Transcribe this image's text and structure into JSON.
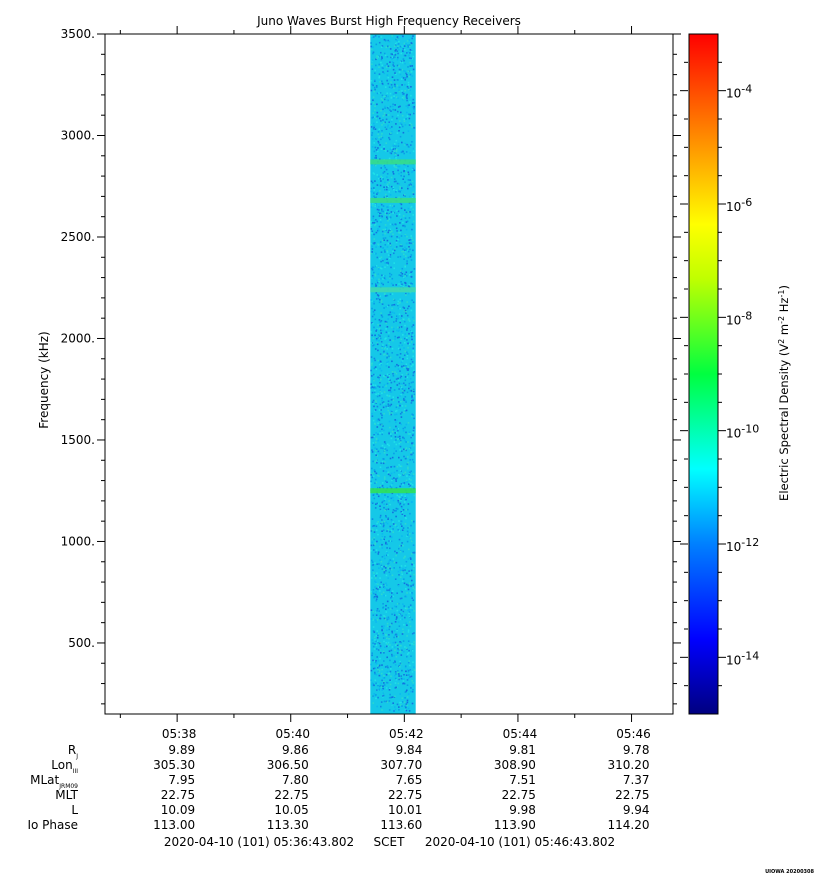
{
  "chart_data": {
    "type": "heatmap",
    "title": "Juno Waves Burst High Frequency Receivers",
    "ylabel": "Frequency (kHz)",
    "ylim": [
      150,
      3500
    ],
    "y_ticks": [
      "500.",
      "1000.",
      "1500.",
      "2000.",
      "2500.",
      "3000.",
      "3500."
    ],
    "y_tick_values": [
      500,
      1000,
      1500,
      2000,
      2500,
      3000,
      3500
    ],
    "x_time_range_min": [
      36.73,
      46.73
    ],
    "x_ticks": [
      "05:38",
      "05:40",
      "05:42",
      "05:44",
      "05:46"
    ],
    "x_tick_minutes": [
      38,
      40,
      42,
      44,
      46
    ],
    "data_time_span_min": [
      41.4,
      42.2
    ],
    "background_level_exp": -12,
    "emission_bands": [
      {
        "freq_khz": 2870,
        "level_exp": -11
      },
      {
        "freq_khz": 2680,
        "level_exp": -11
      },
      {
        "freq_khz": 2240,
        "level_exp": -11.5
      },
      {
        "freq_khz": 1250,
        "level_exp": -10.8
      }
    ],
    "colorbar": {
      "label_main": "Electric Spectral Density (V",
      "label_mid": " m",
      "label_mid2": " Hz",
      "label_end": ")",
      "sup1": "2",
      "sup2": "-2",
      "sup3": "-1",
      "range_exp": [
        -15,
        -3
      ],
      "ticks": [
        {
          "base": "10",
          "exp": "-4"
        },
        {
          "base": "10",
          "exp": "-6"
        },
        {
          "base": "10",
          "exp": "-8"
        },
        {
          "base": "10",
          "exp": "-10"
        },
        {
          "base": "10",
          "exp": "-12"
        },
        {
          "base": "10",
          "exp": "-14"
        }
      ],
      "tick_exps": [
        -4,
        -6,
        -8,
        -10,
        -12,
        -14
      ]
    },
    "ephemeris": [
      {
        "label": "R",
        "sub": "J",
        "values": [
          "9.89",
          "9.86",
          "9.84",
          "9.81",
          "9.78"
        ]
      },
      {
        "label": "Lon",
        "sub": "III",
        "values": [
          "305.30",
          "306.50",
          "307.70",
          "308.90",
          "310.20"
        ]
      },
      {
        "label": "MLat",
        "sub": "JRM09",
        "values": [
          "7.95",
          "7.80",
          "7.65",
          "7.51",
          "7.37"
        ]
      },
      {
        "label": "MLT",
        "sub": "",
        "values": [
          "22.75",
          "22.75",
          "22.75",
          "22.75",
          "22.75"
        ]
      },
      {
        "label": "L",
        "sub": "",
        "values": [
          "10.09",
          "10.05",
          "10.01",
          "9.98",
          "9.94"
        ]
      },
      {
        "label": "Io Phase",
        "sub": "",
        "values": [
          "113.00",
          "113.30",
          "113.60",
          "113.90",
          "114.20"
        ]
      }
    ],
    "time_range_start": "2020-04-10 (101) 05:36:43.802",
    "time_range_label": "SCET",
    "time_range_end": "2020-04-10 (101) 05:46:43.802"
  },
  "footer_stamp": "UIOWA 20200308",
  "colors": {
    "axis": "#000000",
    "background": "#ffffff"
  }
}
